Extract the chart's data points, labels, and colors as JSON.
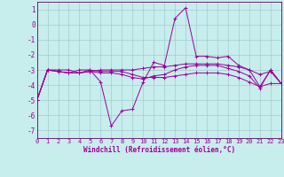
{
  "xlabel": "Windchill (Refroidissement éolien,°C)",
  "bg_color": "#c8eded",
  "line_color": "#990099",
  "grid_color": "#a0cccc",
  "axis_color": "#660066",
  "text_color": "#990099",
  "ylim": [
    -7.5,
    1.5
  ],
  "yticks": [
    1,
    0,
    -1,
    -2,
    -3,
    -4,
    -5,
    -6,
    -7
  ],
  "xticks": [
    0,
    1,
    2,
    3,
    4,
    5,
    6,
    7,
    8,
    9,
    10,
    11,
    12,
    13,
    14,
    15,
    16,
    17,
    18,
    19,
    20,
    21,
    22,
    23
  ],
  "line1": [
    -5.0,
    -3.0,
    -3.0,
    -3.0,
    -3.2,
    -3.0,
    -3.8,
    -6.7,
    -5.7,
    -5.6,
    -3.8,
    -2.5,
    -2.7,
    0.4,
    1.1,
    -2.1,
    -2.1,
    -2.2,
    -2.1,
    -2.7,
    -3.0,
    -4.1,
    -3.0,
    -3.9
  ],
  "line2": [
    -5.0,
    -3.0,
    -3.1,
    -3.2,
    -3.2,
    -3.1,
    -3.0,
    -3.0,
    -3.0,
    -3.0,
    -2.9,
    -2.8,
    -2.8,
    -2.7,
    -2.6,
    -2.6,
    -2.6,
    -2.6,
    -2.7,
    -2.8,
    -3.0,
    -3.3,
    -3.1,
    -3.9
  ],
  "line3": [
    -5.0,
    -3.0,
    -3.1,
    -3.2,
    -3.0,
    -3.0,
    -3.1,
    -3.1,
    -3.1,
    -3.3,
    -3.5,
    -3.5,
    -3.5,
    -3.4,
    -3.3,
    -3.2,
    -3.2,
    -3.2,
    -3.3,
    -3.5,
    -3.8,
    -4.1,
    -3.9,
    -3.9
  ],
  "line4": [
    -5.0,
    -3.0,
    -3.1,
    -3.2,
    -3.2,
    -3.1,
    -3.2,
    -3.2,
    -3.3,
    -3.5,
    -3.6,
    -3.4,
    -3.3,
    -3.0,
    -2.8,
    -2.7,
    -2.7,
    -2.7,
    -2.9,
    -3.1,
    -3.4,
    -4.2,
    -3.0,
    -3.9
  ]
}
